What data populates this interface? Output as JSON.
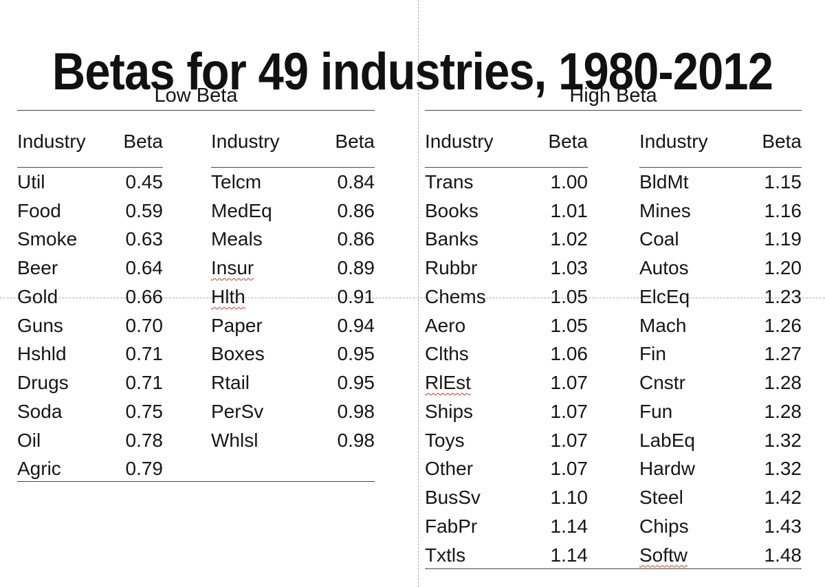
{
  "title": "Betas for 49 industries, 1980-2012",
  "colors": {
    "text": "#161616",
    "rule": "#454545",
    "guide": "#ababab",
    "squiggle": "#cf342a"
  },
  "sections": [
    {
      "label": "Low Beta",
      "columns": [
        {
          "headers": {
            "industry": "Industry",
            "beta": "Beta"
          },
          "rows": [
            {
              "industry": "Util",
              "beta": "0.45"
            },
            {
              "industry": "Food",
              "beta": "0.59"
            },
            {
              "industry": "Smoke",
              "beta": "0.63"
            },
            {
              "industry": "Beer",
              "beta": "0.64"
            },
            {
              "industry": "Gold",
              "beta": "0.66"
            },
            {
              "industry": "Guns",
              "beta": "0.70"
            },
            {
              "industry": "Hshld",
              "beta": "0.71"
            },
            {
              "industry": "Drugs",
              "beta": "0.71"
            },
            {
              "industry": "Soda",
              "beta": "0.75"
            },
            {
              "industry": "Oil",
              "beta": "0.78"
            },
            {
              "industry": "Agric",
              "beta": "0.79"
            }
          ]
        },
        {
          "headers": {
            "industry": "Industry",
            "beta": "Beta"
          },
          "rows": [
            {
              "industry": "Telcm",
              "beta": "0.84"
            },
            {
              "industry": "MedEq",
              "beta": "0.86"
            },
            {
              "industry": "Meals",
              "beta": "0.86"
            },
            {
              "industry": "Insur",
              "beta": "0.89",
              "squiggle": true
            },
            {
              "industry": "Hlth",
              "beta": "0.91",
              "squiggle": true
            },
            {
              "industry": "Paper",
              "beta": "0.94"
            },
            {
              "industry": "Boxes",
              "beta": "0.95"
            },
            {
              "industry": "Rtail",
              "beta": "0.95"
            },
            {
              "industry": "PerSv",
              "beta": "0.98"
            },
            {
              "industry": "Whlsl",
              "beta": "0.98"
            }
          ]
        }
      ]
    },
    {
      "label": "High Beta",
      "columns": [
        {
          "headers": {
            "industry": "Industry",
            "beta": "Beta"
          },
          "rows": [
            {
              "industry": "Trans",
              "beta": "1.00"
            },
            {
              "industry": "Books",
              "beta": "1.01"
            },
            {
              "industry": "Banks",
              "beta": "1.02"
            },
            {
              "industry": "Rubbr",
              "beta": "1.03"
            },
            {
              "industry": "Chems",
              "beta": "1.05"
            },
            {
              "industry": "Aero",
              "beta": "1.05"
            },
            {
              "industry": "Clths",
              "beta": "1.06"
            },
            {
              "industry": "RlEst",
              "beta": "1.07",
              "squiggle": true
            },
            {
              "industry": "Ships",
              "beta": "1.07"
            },
            {
              "industry": "Toys",
              "beta": "1.07"
            },
            {
              "industry": "Other",
              "beta": "1.07"
            },
            {
              "industry": "BusSv",
              "beta": "1.10"
            },
            {
              "industry": "FabPr",
              "beta": "1.14"
            },
            {
              "industry": "Txtls",
              "beta": "1.14"
            }
          ]
        },
        {
          "headers": {
            "industry": "Industry",
            "beta": "Beta"
          },
          "rows": [
            {
              "industry": "BldMt",
              "beta": "1.15"
            },
            {
              "industry": "Mines",
              "beta": "1.16"
            },
            {
              "industry": "Coal",
              "beta": "1.19"
            },
            {
              "industry": "Autos",
              "beta": "1.20"
            },
            {
              "industry": "ElcEq",
              "beta": "1.23"
            },
            {
              "industry": "Mach",
              "beta": "1.26"
            },
            {
              "industry": "Fin",
              "beta": "1.27"
            },
            {
              "industry": "Cnstr",
              "beta": "1.28"
            },
            {
              "industry": "Fun",
              "beta": "1.28"
            },
            {
              "industry": "LabEq",
              "beta": "1.32"
            },
            {
              "industry": "Hardw",
              "beta": "1.32"
            },
            {
              "industry": "Steel",
              "beta": "1.42"
            },
            {
              "industry": "Chips",
              "beta": "1.43"
            },
            {
              "industry": "Softw",
              "beta": "1.48",
              "squiggle": true
            }
          ]
        }
      ]
    }
  ]
}
